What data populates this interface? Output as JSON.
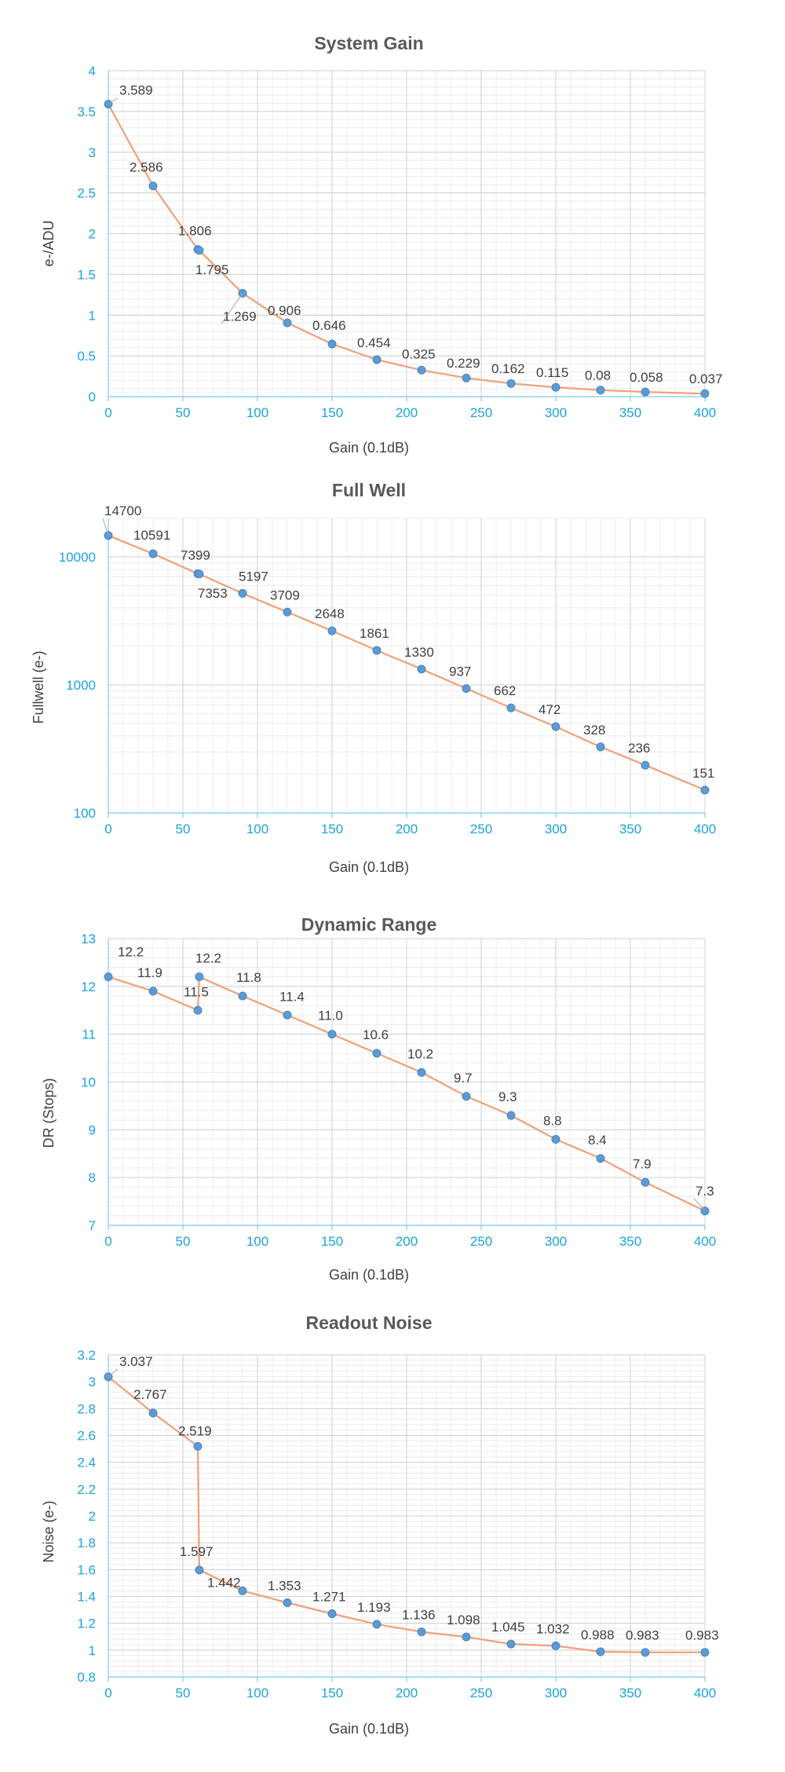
{
  "colors": {
    "series": "#f0a07a",
    "marker": "#5b9bd5",
    "tick": "#1aa3e0",
    "grid": "#d0d0d0"
  },
  "chart_data": [
    {
      "type": "line",
      "title": "System Gain",
      "xlabel": "Gain (0.1dB)",
      "ylabel": "e-/ADU",
      "xlim": [
        0,
        400
      ],
      "ylim": [
        0,
        4
      ],
      "y_scale": "linear",
      "x_ticks": [
        0,
        50,
        100,
        150,
        200,
        250,
        300,
        350,
        400
      ],
      "y_ticks": [
        0,
        0.5,
        1,
        1.5,
        2,
        2.5,
        3,
        3.5,
        4
      ],
      "y_tick_labels": [
        "0",
        "0.5",
        "1",
        "1.5",
        "2",
        "2.5",
        "3",
        "3.5",
        "4"
      ],
      "grid": true,
      "x": [
        0,
        30,
        60,
        61,
        90,
        120,
        150,
        180,
        210,
        240,
        270,
        300,
        330,
        360,
        400
      ],
      "y": [
        3.589,
        2.586,
        1.806,
        1.795,
        1.269,
        0.906,
        0.646,
        0.454,
        0.325,
        0.229,
        0.162,
        0.115,
        0.08,
        0.058,
        0.037
      ],
      "labels": [
        "3.589",
        "2.586",
        "1.806",
        "1.795",
        "1.269",
        "0.906",
        "0.646",
        "0.454",
        "0.325",
        "0.229",
        "0.162",
        "0.115",
        "0.08",
        "0.058",
        "0.037"
      ]
    },
    {
      "type": "line",
      "title": "Full Well",
      "xlabel": "Gain (0.1dB)",
      "ylabel": "Fullwell (e-)",
      "xlim": [
        0,
        400
      ],
      "ylim": [
        100,
        20000
      ],
      "y_scale": "log",
      "x_ticks": [
        0,
        50,
        100,
        150,
        200,
        250,
        300,
        350,
        400
      ],
      "y_ticks": [
        100,
        1000,
        10000
      ],
      "y_tick_labels": [
        "100",
        "1000",
        "10000"
      ],
      "grid": true,
      "x": [
        0,
        30,
        60,
        61,
        90,
        120,
        150,
        180,
        210,
        240,
        270,
        300,
        330,
        360,
        400
      ],
      "y": [
        14700,
        10591,
        7399,
        7353,
        5197,
        3709,
        2648,
        1861,
        1330,
        937,
        662,
        472,
        328,
        236,
        151
      ],
      "labels": [
        "14700",
        "10591",
        "7399",
        "7353",
        "5197",
        "3709",
        "2648",
        "1861",
        "1330",
        "937",
        "662",
        "472",
        "328",
        "236",
        "151"
      ]
    },
    {
      "type": "line",
      "title": "Dynamic Range",
      "xlabel": "Gain (0.1dB)",
      "ylabel": "DR (Stops)",
      "xlim": [
        0,
        400
      ],
      "ylim": [
        7,
        13
      ],
      "y_scale": "linear",
      "x_ticks": [
        0,
        50,
        100,
        150,
        200,
        250,
        300,
        350,
        400
      ],
      "y_ticks": [
        7,
        8,
        9,
        10,
        11,
        12,
        13
      ],
      "y_tick_labels": [
        "7",
        "8",
        "9",
        "10",
        "11",
        "12",
        "13"
      ],
      "grid": true,
      "x": [
        0,
        30,
        60,
        61,
        90,
        120,
        150,
        180,
        210,
        240,
        270,
        300,
        330,
        360,
        400
      ],
      "y": [
        12.2,
        11.9,
        11.5,
        12.2,
        11.8,
        11.4,
        11.0,
        10.6,
        10.2,
        9.7,
        9.3,
        8.8,
        8.4,
        7.9,
        7.3
      ],
      "labels": [
        "12.2",
        "11.9",
        "11.5",
        "12.2",
        "11.8",
        "11.4",
        "11.0",
        "10.6",
        "10.2",
        "9.7",
        "9.3",
        "8.8",
        "8.4",
        "7.9",
        "7.3"
      ]
    },
    {
      "type": "line",
      "title": "Readout Noise",
      "xlabel": "Gain (0.1dB)",
      "ylabel": "Noise (e-)",
      "xlim": [
        0,
        400
      ],
      "ylim": [
        0.8,
        3.2
      ],
      "y_scale": "linear",
      "x_ticks": [
        0,
        50,
        100,
        150,
        200,
        250,
        300,
        350,
        400
      ],
      "y_ticks": [
        0.8,
        1,
        1.2,
        1.4,
        1.6,
        1.8,
        2,
        2.2,
        2.4,
        2.6,
        2.8,
        3,
        3.2
      ],
      "y_tick_labels": [
        "0.8",
        "1",
        "1.2",
        "1.4",
        "1.6",
        "1.8",
        "2",
        "2.2",
        "2.4",
        "2.6",
        "2.8",
        "3",
        "3.2"
      ],
      "grid": true,
      "x": [
        0,
        30,
        60,
        61,
        90,
        120,
        150,
        180,
        210,
        240,
        270,
        300,
        330,
        360,
        400
      ],
      "y": [
        3.037,
        2.767,
        2.519,
        1.597,
        1.442,
        1.353,
        1.271,
        1.193,
        1.136,
        1.098,
        1.045,
        1.032,
        0.988,
        0.983,
        0.983
      ],
      "labels": [
        "3.037",
        "2.767",
        "2.519",
        "1.597",
        "1.442",
        "1.353",
        "1.271",
        "1.193",
        "1.136",
        "1.098",
        "1.045",
        "1.032",
        "0.988",
        "0.983",
        "0.983"
      ]
    }
  ]
}
